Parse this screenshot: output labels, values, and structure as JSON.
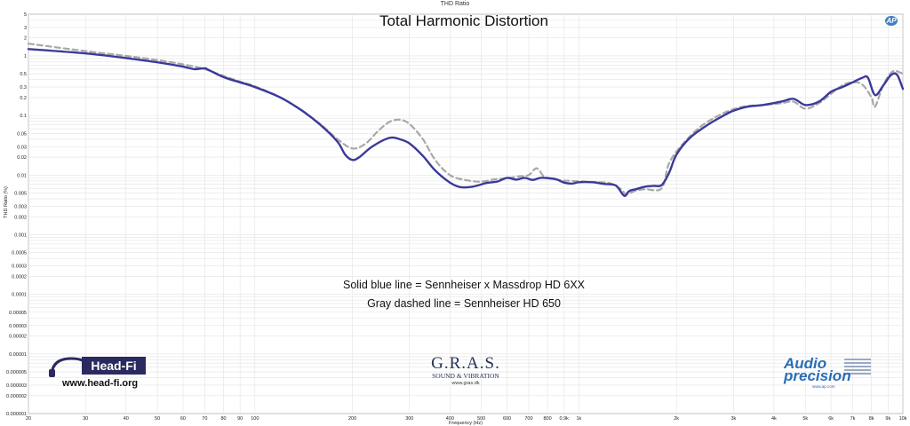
{
  "window_title": "THD Ratio",
  "chart_data": {
    "type": "line",
    "title": "Total Harmonic Distortion",
    "xlabel": "Frequency (Hz)",
    "ylabel": "THD Ratio (%)",
    "xscale": "log",
    "yscale": "log",
    "xlim": [
      20,
      10000
    ],
    "ylim": [
      1e-06,
      5
    ],
    "grid": true,
    "x_tick_labels": [
      {
        "v": 20,
        "t": "20"
      },
      {
        "v": 30,
        "t": "30"
      },
      {
        "v": 40,
        "t": "40"
      },
      {
        "v": 50,
        "t": "50"
      },
      {
        "v": 60,
        "t": "60"
      },
      {
        "v": 70,
        "t": "70"
      },
      {
        "v": 80,
        "t": "80"
      },
      {
        "v": 90,
        "t": "90"
      },
      {
        "v": 100,
        "t": "100"
      },
      {
        "v": 200,
        "t": "200"
      },
      {
        "v": 300,
        "t": "300"
      },
      {
        "v": 400,
        "t": "400"
      },
      {
        "v": 500,
        "t": "500"
      },
      {
        "v": 600,
        "t": "600"
      },
      {
        "v": 700,
        "t": "700"
      },
      {
        "v": 800,
        "t": "800"
      },
      {
        "v": 900,
        "t": "0.9k"
      },
      {
        "v": 1000,
        "t": "1k"
      },
      {
        "v": 2000,
        "t": "2k"
      },
      {
        "v": 3000,
        "t": "3k"
      },
      {
        "v": 4000,
        "t": "4k"
      },
      {
        "v": 5000,
        "t": "5k"
      },
      {
        "v": 6000,
        "t": "6k"
      },
      {
        "v": 7000,
        "t": "7k"
      },
      {
        "v": 8000,
        "t": "8k"
      },
      {
        "v": 9000,
        "t": "9k"
      },
      {
        "v": 10000,
        "t": "10k"
      }
    ],
    "y_tick_labels": [
      {
        "v": 5,
        "t": "5"
      },
      {
        "v": 3,
        "t": "3"
      },
      {
        "v": 2,
        "t": "2"
      },
      {
        "v": 1,
        "t": "1"
      },
      {
        "v": 0.5,
        "t": "0.5"
      },
      {
        "v": 0.3,
        "t": "0.3"
      },
      {
        "v": 0.2,
        "t": "0.2"
      },
      {
        "v": 0.1,
        "t": "0.1"
      },
      {
        "v": 0.05,
        "t": "0.05"
      },
      {
        "v": 0.03,
        "t": "0.03"
      },
      {
        "v": 0.02,
        "t": "0.02"
      },
      {
        "v": 0.01,
        "t": "0.01"
      },
      {
        "v": 0.005,
        "t": "0.005"
      },
      {
        "v": 0.003,
        "t": "0.003"
      },
      {
        "v": 0.002,
        "t": "0.002"
      },
      {
        "v": 0.001,
        "t": "0.001"
      },
      {
        "v": 0.0005,
        "t": "0.0005"
      },
      {
        "v": 0.0003,
        "t": "0.0003"
      },
      {
        "v": 0.0002,
        "t": "0.0002"
      },
      {
        "v": 0.0001,
        "t": "0.0001"
      },
      {
        "v": 5e-05,
        "t": "0.00005"
      },
      {
        "v": 3e-05,
        "t": "0.00003"
      },
      {
        "v": 2e-05,
        "t": "0.00002"
      },
      {
        "v": 1e-05,
        "t": "0.00001"
      },
      {
        "v": 5e-06,
        "t": "0.000005"
      },
      {
        "v": 3e-06,
        "t": "0.000003"
      },
      {
        "v": 2e-06,
        "t": "0.000002"
      },
      {
        "v": 1e-06,
        "t": "0.000001"
      }
    ],
    "series": [
      {
        "color": "#3a3a9a",
        "style": "solid",
        "points": [
          [
            20,
            1.3
          ],
          [
            30,
            1.1
          ],
          [
            40,
            0.92
          ],
          [
            50,
            0.78
          ],
          [
            60,
            0.66
          ],
          [
            65,
            0.6
          ],
          [
            70,
            0.62
          ],
          [
            72,
            0.58
          ],
          [
            80,
            0.44
          ],
          [
            90,
            0.36
          ],
          [
            100,
            0.3
          ],
          [
            120,
            0.2
          ],
          [
            140,
            0.12
          ],
          [
            160,
            0.068
          ],
          [
            180,
            0.036
          ],
          [
            190,
            0.022
          ],
          [
            200,
            0.018
          ],
          [
            210,
            0.02
          ],
          [
            230,
            0.03
          ],
          [
            260,
            0.042
          ],
          [
            280,
            0.04
          ],
          [
            300,
            0.034
          ],
          [
            330,
            0.021
          ],
          [
            360,
            0.012
          ],
          [
            400,
            0.0075
          ],
          [
            430,
            0.0063
          ],
          [
            470,
            0.0064
          ],
          [
            520,
            0.0074
          ],
          [
            560,
            0.0078
          ],
          [
            600,
            0.009
          ],
          [
            640,
            0.0084
          ],
          [
            680,
            0.009
          ],
          [
            720,
            0.0083
          ],
          [
            760,
            0.009
          ],
          [
            800,
            0.0089
          ],
          [
            850,
            0.0085
          ],
          [
            900,
            0.0075
          ],
          [
            950,
            0.0072
          ],
          [
            1000,
            0.0076
          ],
          [
            1100,
            0.0076
          ],
          [
            1200,
            0.0071
          ],
          [
            1300,
            0.0067
          ],
          [
            1380,
            0.0045
          ],
          [
            1430,
            0.0054
          ],
          [
            1500,
            0.0058
          ],
          [
            1600,
            0.0064
          ],
          [
            1700,
            0.0066
          ],
          [
            1800,
            0.0068
          ],
          [
            1900,
            0.011
          ],
          [
            2000,
            0.022
          ],
          [
            2200,
            0.042
          ],
          [
            2500,
            0.07
          ],
          [
            2800,
            0.1
          ],
          [
            3000,
            0.12
          ],
          [
            3300,
            0.14
          ],
          [
            3700,
            0.15
          ],
          [
            4200,
            0.17
          ],
          [
            4600,
            0.19
          ],
          [
            5000,
            0.15
          ],
          [
            5500,
            0.17
          ],
          [
            6000,
            0.25
          ],
          [
            6500,
            0.3
          ],
          [
            7000,
            0.36
          ],
          [
            7500,
            0.43
          ],
          [
            7800,
            0.43
          ],
          [
            8200,
            0.22
          ],
          [
            8700,
            0.32
          ],
          [
            9200,
            0.48
          ],
          [
            9600,
            0.48
          ],
          [
            10000,
            0.28
          ]
        ]
      },
      {
        "color": "#a8a8a8",
        "style": "dashed",
        "points": [
          [
            20,
            1.6
          ],
          [
            30,
            1.2
          ],
          [
            40,
            1.0
          ],
          [
            50,
            0.85
          ],
          [
            60,
            0.72
          ],
          [
            70,
            0.6
          ],
          [
            80,
            0.46
          ],
          [
            90,
            0.37
          ],
          [
            100,
            0.31
          ],
          [
            120,
            0.2
          ],
          [
            140,
            0.12
          ],
          [
            160,
            0.07
          ],
          [
            180,
            0.04
          ],
          [
            200,
            0.028
          ],
          [
            220,
            0.034
          ],
          [
            240,
            0.055
          ],
          [
            260,
            0.078
          ],
          [
            280,
            0.085
          ],
          [
            300,
            0.072
          ],
          [
            330,
            0.04
          ],
          [
            360,
            0.018
          ],
          [
            400,
            0.01
          ],
          [
            450,
            0.0082
          ],
          [
            500,
            0.0078
          ],
          [
            550,
            0.0085
          ],
          [
            600,
            0.0088
          ],
          [
            650,
            0.0095
          ],
          [
            700,
            0.01
          ],
          [
            740,
            0.013
          ],
          [
            780,
            0.0095
          ],
          [
            820,
            0.0088
          ],
          [
            880,
            0.0082
          ],
          [
            950,
            0.008
          ],
          [
            1050,
            0.0078
          ],
          [
            1150,
            0.0076
          ],
          [
            1250,
            0.0073
          ],
          [
            1350,
            0.0058
          ],
          [
            1400,
            0.0048
          ],
          [
            1500,
            0.0055
          ],
          [
            1600,
            0.0058
          ],
          [
            1800,
            0.006
          ],
          [
            1900,
            0.016
          ],
          [
            2100,
            0.034
          ],
          [
            2400,
            0.068
          ],
          [
            2800,
            0.11
          ],
          [
            3200,
            0.14
          ],
          [
            3700,
            0.15
          ],
          [
            4200,
            0.16
          ],
          [
            4600,
            0.17
          ],
          [
            5000,
            0.13
          ],
          [
            5500,
            0.16
          ],
          [
            6000,
            0.23
          ],
          [
            6500,
            0.32
          ],
          [
            7000,
            0.36
          ],
          [
            7500,
            0.33
          ],
          [
            8000,
            0.2
          ],
          [
            8200,
            0.14
          ],
          [
            8700,
            0.32
          ],
          [
            9300,
            0.55
          ],
          [
            10000,
            0.5
          ]
        ]
      }
    ],
    "annotations": [
      "Solid blue line = Sennheiser x Massdrop HD 6XX",
      "Gray dashed line = Sennheiser HD 650"
    ]
  },
  "badge": "AP",
  "logos": {
    "headfi": {
      "name": "Head-Fi",
      "url": "www.head-fi.org"
    },
    "gras": {
      "name": "G.R.A.S.",
      "subtitle": "SOUND & VIBRATION",
      "url": "www.gras.dk"
    },
    "ap": {
      "line1": "Audio",
      "line2": "precision",
      "url": "www.ap.com",
      "color": "#2a6db5"
    }
  }
}
